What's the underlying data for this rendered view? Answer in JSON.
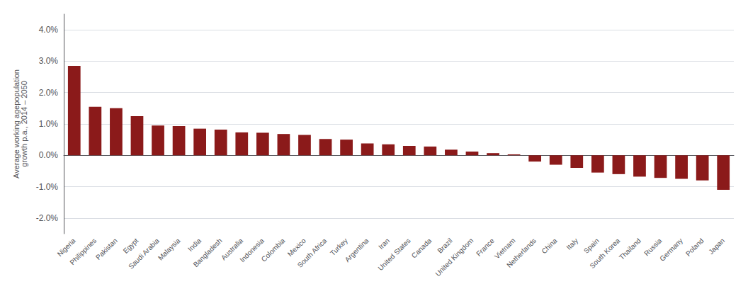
{
  "chart_data": {
    "type": "bar",
    "categories": [
      "Nigeria",
      "Philippines",
      "Pakistan",
      "Egypt",
      "Saudi Arabia",
      "Malaysia",
      "India",
      "Bangladesh",
      "Australia",
      "Indonesia",
      "Colombia",
      "Mexico",
      "South Africa",
      "Turkey",
      "Argentina",
      "Iran",
      "United States",
      "Canada",
      "Brazil",
      "United Kingdom",
      "France",
      "Vietnam",
      "Netherlands",
      "China",
      "Italy",
      "Spain",
      "South Korea",
      "Thailand",
      "Russia",
      "Germany",
      "Poland",
      "Japan"
    ],
    "values": [
      2.85,
      1.55,
      1.5,
      1.25,
      0.95,
      0.93,
      0.85,
      0.82,
      0.73,
      0.72,
      0.68,
      0.65,
      0.52,
      0.5,
      0.38,
      0.35,
      0.3,
      0.28,
      0.18,
      0.12,
      0.07,
      0.03,
      -0.2,
      -0.3,
      -0.4,
      -0.55,
      -0.6,
      -0.68,
      -0.72,
      -0.75,
      -0.8,
      -1.1
    ],
    "color": "#8B1A1A",
    "ylabel": "Average working agepopulation\ngrowth p.a., 2014 – 2050",
    "ylim": [
      -2.5,
      4.5
    ],
    "yticks": [
      {
        "value": -2.0,
        "label": "-2.0%"
      },
      {
        "value": -1.0,
        "label": "-1.0%"
      },
      {
        "value": 0.0,
        "label": "0.0%"
      },
      {
        "value": 1.0,
        "label": "1.0%"
      },
      {
        "value": 2.0,
        "label": "2.0%"
      },
      {
        "value": 3.0,
        "label": "3.0%"
      },
      {
        "value": 4.0,
        "label": "4.0%"
      }
    ],
    "grid": true
  }
}
